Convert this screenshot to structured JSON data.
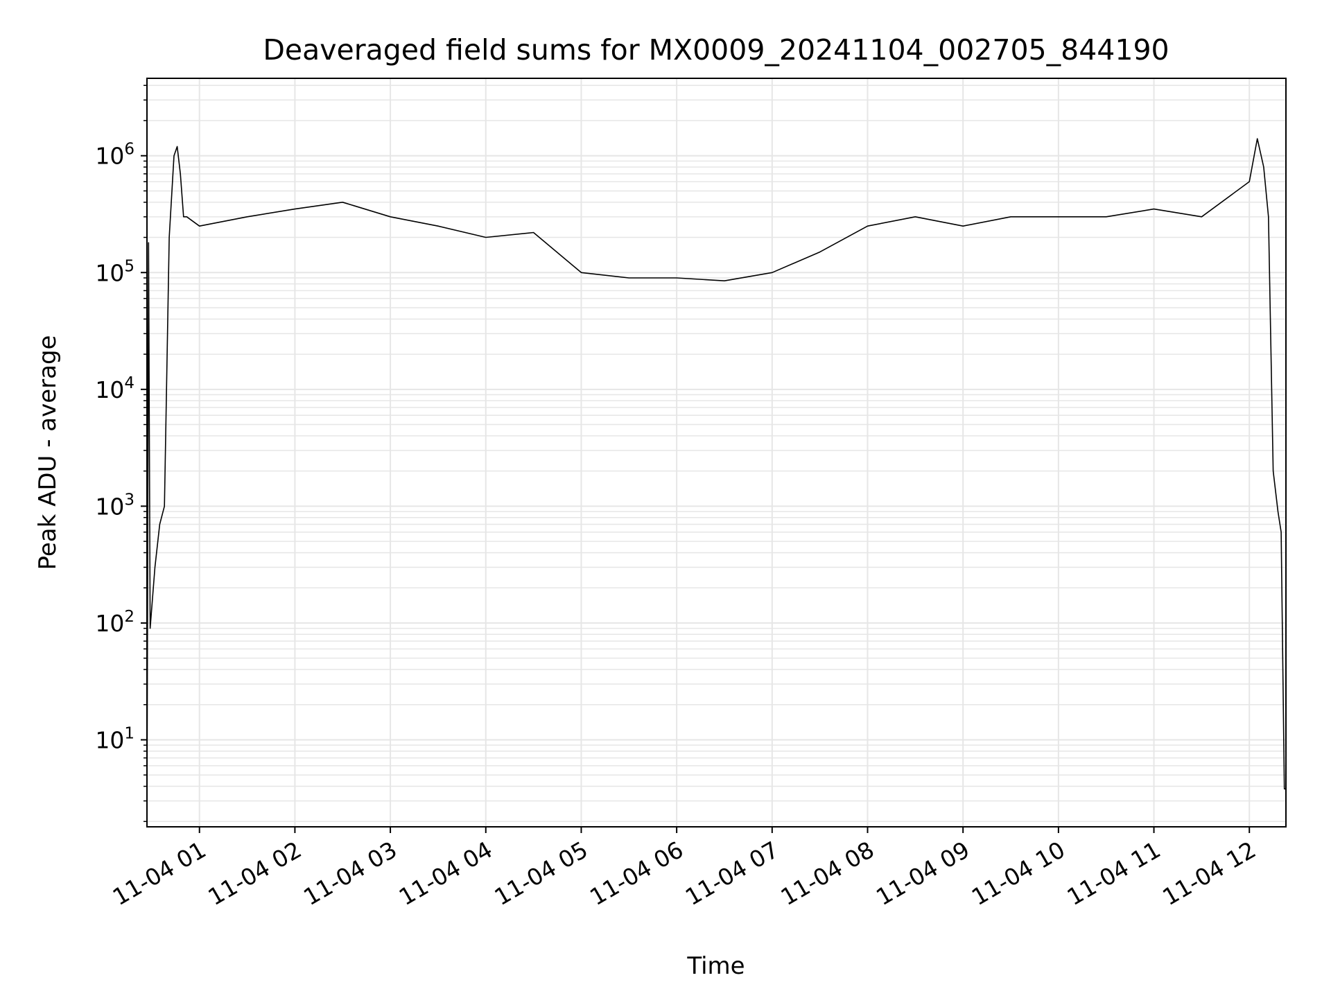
{
  "chart_data": {
    "type": "line",
    "title": "Deaveraged field sums for MX0009_20241104_002705_844190",
    "xlabel": "Time",
    "ylabel": "Peak ADU - average",
    "y_scale": "log",
    "ylim": [
      1.8,
      4600000
    ],
    "xlim": [
      "2024-11-04 00:27",
      "2024-11-04 12:23"
    ],
    "grid": true,
    "grid_minor": true,
    "line_color": "#000000",
    "x_ticks": [
      "2024-11-04 01:00",
      "2024-11-04 02:00",
      "2024-11-04 03:00",
      "2024-11-04 04:00",
      "2024-11-04 05:00",
      "2024-11-04 06:00",
      "2024-11-04 07:00",
      "2024-11-04 08:00",
      "2024-11-04 09:00",
      "2024-11-04 10:00",
      "2024-11-04 11:00",
      "2024-11-04 12:00"
    ],
    "x_tick_labels": [
      "11-04 01",
      "11-04 02",
      "11-04 03",
      "11-04 04",
      "11-04 05",
      "11-04 06",
      "11-04 07",
      "11-04 08",
      "11-04 09",
      "11-04 10",
      "11-04 11",
      "11-04 12"
    ],
    "y_ticks": [
      10,
      100,
      1000,
      10000,
      100000,
      1000000
    ],
    "y_tick_labels": [
      {
        "base": "10",
        "exp": "1"
      },
      {
        "base": "10",
        "exp": "2"
      },
      {
        "base": "10",
        "exp": "3"
      },
      {
        "base": "10",
        "exp": "4"
      },
      {
        "base": "10",
        "exp": "5"
      },
      {
        "base": "10",
        "exp": "6"
      }
    ],
    "series": [
      {
        "x": [
          "2024-11-04 00:27",
          "2024-11-04 00:28",
          "2024-11-04 00:29",
          "2024-11-04 00:32",
          "2024-11-04 00:35",
          "2024-11-04 00:38",
          "2024-11-04 00:41",
          "2024-11-04 00:44",
          "2024-11-04 00:46",
          "2024-11-04 00:48",
          "2024-11-04 00:50",
          "2024-11-04 00:52",
          "2024-11-04 01:00",
          "2024-11-04 01:30",
          "2024-11-04 02:00",
          "2024-11-04 02:30",
          "2024-11-04 03:00",
          "2024-11-04 03:30",
          "2024-11-04 04:00",
          "2024-11-04 04:30",
          "2024-11-04 05:00",
          "2024-11-04 05:30",
          "2024-11-04 06:00",
          "2024-11-04 06:30",
          "2024-11-04 07:00",
          "2024-11-04 07:30",
          "2024-11-04 08:00",
          "2024-11-04 08:30",
          "2024-11-04 09:00",
          "2024-11-04 09:30",
          "2024-11-04 10:00",
          "2024-11-04 10:30",
          "2024-11-04 11:00",
          "2024-11-04 11:30",
          "2024-11-04 12:00",
          "2024-11-04 12:05",
          "2024-11-04 12:09",
          "2024-11-04 12:12",
          "2024-11-04 12:15",
          "2024-11-04 12:18",
          "2024-11-04 12:20",
          "2024-11-04 12:22",
          "2024-11-04 12:23"
        ],
        "y": [
          2,
          180000,
          90,
          300,
          700,
          1000,
          200000,
          1000000,
          1200000,
          700000,
          300000,
          300000,
          250000,
          300000,
          350000,
          400000,
          300000,
          250000,
          200000,
          220000,
          100000,
          90000,
          90000,
          85000,
          100000,
          150000,
          250000,
          300000,
          250000,
          300000,
          300000,
          300000,
          350000,
          300000,
          600000,
          1400000,
          800000,
          300000,
          2000,
          900,
          600,
          3.8,
          3.8
        ]
      }
    ]
  }
}
